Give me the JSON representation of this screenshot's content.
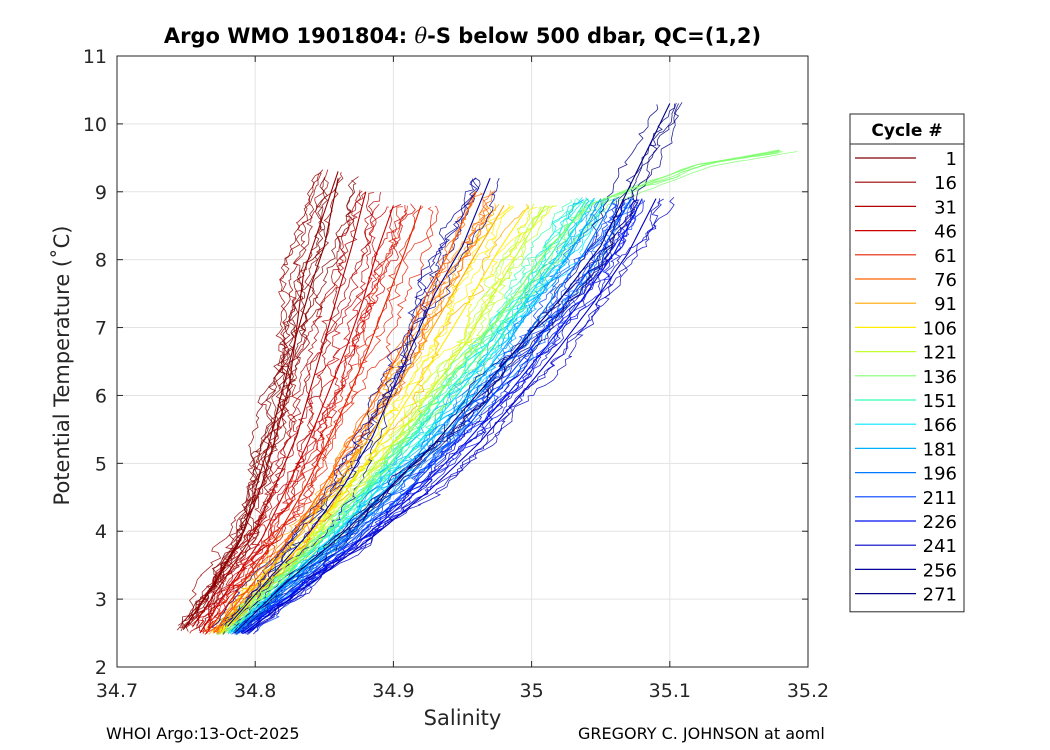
{
  "title": {
    "prefix": "Argo WMO 1901804: ",
    "symbol": "θ",
    "suffix": "-S below 500 dbar,  QC=(1,2)"
  },
  "footer": {
    "left": "WHOI Argo:13-Oct-2025",
    "right": "GREGORY C. JOHNSON at aoml"
  },
  "chart_data": {
    "type": "line",
    "title": "Argo WMO 1901804: θ-S below 500 dbar,  QC=(1,2)",
    "xlabel": "Salinity",
    "ylabel": "Potential Temperature (˚C)",
    "xlim": [
      34.7,
      35.2
    ],
    "ylim": [
      2,
      11
    ],
    "xticks": [
      34.7,
      34.8,
      34.9,
      35,
      35.1,
      35.2
    ],
    "xtick_labels": [
      "34.7",
      "34.8",
      "34.9",
      "35",
      "35.1",
      "35.2"
    ],
    "yticks": [
      2,
      3,
      4,
      5,
      6,
      7,
      8,
      9,
      10,
      11
    ],
    "ytick_labels": [
      "2",
      "3",
      "4",
      "5",
      "6",
      "7",
      "8",
      "9",
      "10",
      "11"
    ],
    "grid": true,
    "legend": {
      "title": "Cycle #",
      "placement": "outside-right",
      "entries": [
        {
          "label": "1",
          "color": "#800000"
        },
        {
          "label": "16",
          "color": "#980000"
        },
        {
          "label": "31",
          "color": "#b00000"
        },
        {
          "label": "46",
          "color": "#cc0000"
        },
        {
          "label": "61",
          "color": "#e62000"
        },
        {
          "label": "76",
          "color": "#ff6000"
        },
        {
          "label": "91",
          "color": "#ffa800"
        },
        {
          "label": "106",
          "color": "#ffee00"
        },
        {
          "label": "121",
          "color": "#c0ff30"
        },
        {
          "label": "136",
          "color": "#80ff70"
        },
        {
          "label": "151",
          "color": "#30ffb0"
        },
        {
          "label": "166",
          "color": "#00e8ff"
        },
        {
          "label": "181",
          "color": "#00b0ff"
        },
        {
          "label": "196",
          "color": "#0078ff"
        },
        {
          "label": "211",
          "color": "#0040ff"
        },
        {
          "label": "226",
          "color": "#0010f0"
        },
        {
          "label": "241",
          "color": "#0000c8"
        },
        {
          "label": "256",
          "color": "#00009c"
        },
        {
          "label": "271",
          "color": "#000080"
        }
      ]
    },
    "series": [
      {
        "name": "1",
        "s": [
          34.748,
          34.77,
          34.79,
          34.8,
          34.81,
          34.82,
          34.83,
          34.84,
          34.85,
          34.86
        ],
        "theta": [
          2.55,
          3.2,
          3.9,
          4.6,
          5.3,
          6.1,
          6.9,
          7.6,
          8.2,
          9.2
        ]
      },
      {
        "name": "16",
        "s": [
          34.75,
          34.772,
          34.792,
          34.805,
          34.815,
          34.825,
          34.83,
          34.835,
          34.845,
          34.86
        ],
        "theta": [
          2.6,
          3.3,
          4.0,
          4.7,
          5.4,
          6.2,
          7.0,
          7.8,
          8.4,
          9.3
        ]
      },
      {
        "name": "31",
        "s": [
          34.755,
          34.778,
          34.8,
          34.815,
          34.83,
          34.84,
          34.85,
          34.86,
          34.87,
          34.88
        ],
        "theta": [
          2.6,
          3.3,
          4.0,
          4.7,
          5.4,
          6.1,
          6.8,
          7.5,
          8.2,
          9.0
        ]
      },
      {
        "name": "46",
        "s": [
          34.76,
          34.782,
          34.805,
          34.822,
          34.838,
          34.852,
          34.866,
          34.878,
          34.888,
          34.9
        ],
        "theta": [
          2.5,
          3.2,
          3.9,
          4.6,
          5.3,
          6.0,
          6.7,
          7.4,
          8.1,
          8.8
        ]
      },
      {
        "name": "61",
        "s": [
          34.765,
          34.79,
          34.815,
          34.835,
          34.852,
          34.868,
          34.882,
          34.895,
          34.908,
          34.92
        ],
        "theta": [
          2.5,
          3.2,
          3.9,
          4.6,
          5.3,
          6.0,
          6.7,
          7.4,
          8.1,
          8.8
        ]
      },
      {
        "name": "76",
        "s": [
          34.77,
          34.797,
          34.825,
          34.848,
          34.868,
          34.888,
          34.906,
          34.922,
          34.94,
          34.96
        ],
        "theta": [
          2.5,
          3.2,
          3.9,
          4.6,
          5.3,
          6.0,
          6.7,
          7.4,
          8.1,
          9.0
        ]
      },
      {
        "name": "91",
        "s": [
          34.772,
          34.8,
          34.83,
          34.856,
          34.88,
          34.9,
          34.92,
          34.94,
          34.96,
          34.98
        ],
        "theta": [
          2.5,
          3.2,
          3.9,
          4.6,
          5.3,
          6.0,
          6.7,
          7.4,
          8.1,
          8.8
        ]
      },
      {
        "name": "106",
        "s": [
          34.775,
          34.805,
          34.838,
          34.866,
          34.89,
          34.912,
          34.934,
          34.955,
          34.975,
          34.998
        ],
        "theta": [
          2.5,
          3.2,
          3.9,
          4.6,
          5.3,
          6.0,
          6.7,
          7.4,
          8.1,
          8.8
        ]
      },
      {
        "name": "121",
        "s": [
          34.776,
          34.808,
          34.842,
          34.872,
          34.9,
          34.925,
          34.95,
          34.97,
          34.99,
          35.01
        ],
        "theta": [
          2.5,
          3.2,
          3.9,
          4.6,
          5.3,
          6.0,
          6.7,
          7.4,
          8.1,
          8.8
        ]
      },
      {
        "name": "136",
        "s": [
          34.778,
          34.812,
          34.846,
          34.878,
          34.906,
          34.932,
          34.96,
          34.985,
          35.01,
          35.04,
          35.12,
          35.18
        ],
        "theta": [
          2.5,
          3.2,
          3.9,
          4.6,
          5.3,
          6.0,
          6.7,
          7.4,
          8.1,
          8.8,
          9.4,
          9.6
        ]
      },
      {
        "name": "151",
        "s": [
          34.78,
          34.815,
          34.85,
          34.882,
          34.91,
          34.938,
          34.966,
          34.99,
          35.015,
          35.04
        ],
        "theta": [
          2.5,
          3.2,
          3.9,
          4.6,
          5.3,
          6.0,
          6.7,
          7.4,
          8.1,
          8.9
        ]
      },
      {
        "name": "166",
        "s": [
          34.782,
          34.818,
          34.855,
          34.888,
          34.918,
          34.946,
          34.972,
          34.996,
          35.02,
          35.045
        ],
        "theta": [
          2.5,
          3.2,
          3.9,
          4.6,
          5.3,
          6.0,
          6.7,
          7.4,
          8.1,
          8.9
        ]
      },
      {
        "name": "181",
        "s": [
          34.784,
          34.822,
          34.86,
          34.894,
          34.925,
          34.954,
          34.98,
          35.004,
          35.028,
          35.05
        ],
        "theta": [
          2.5,
          3.2,
          3.9,
          4.6,
          5.3,
          6.0,
          6.7,
          7.4,
          8.1,
          8.9
        ]
      },
      {
        "name": "196",
        "s": [
          34.786,
          34.826,
          34.866,
          34.902,
          34.934,
          34.962,
          34.99,
          35.014,
          35.038,
          35.06
        ],
        "theta": [
          2.5,
          3.2,
          3.9,
          4.6,
          5.3,
          6.0,
          6.7,
          7.4,
          8.1,
          8.9
        ]
      },
      {
        "name": "211",
        "s": [
          34.788,
          34.83,
          34.872,
          34.91,
          34.944,
          34.972,
          35.0,
          35.026,
          35.05,
          35.072
        ],
        "theta": [
          2.5,
          3.2,
          3.9,
          4.6,
          5.3,
          6.0,
          6.7,
          7.4,
          8.1,
          8.9
        ]
      },
      {
        "name": "226",
        "s": [
          34.79,
          34.834,
          34.878,
          34.918,
          34.952,
          34.982,
          35.01,
          35.036,
          35.06,
          35.08
        ],
        "theta": [
          2.5,
          3.2,
          3.9,
          4.6,
          5.3,
          6.0,
          6.7,
          7.4,
          8.1,
          8.9
        ]
      },
      {
        "name": "241",
        "s": [
          34.792,
          34.838,
          34.884,
          34.926,
          34.962,
          34.992,
          35.02,
          35.046,
          35.07,
          35.09
        ],
        "theta": [
          2.5,
          3.2,
          3.9,
          4.6,
          5.3,
          6.0,
          6.7,
          7.4,
          8.1,
          8.9
        ]
      },
      {
        "name": "256",
        "s": [
          34.78,
          34.81,
          34.84,
          34.865,
          34.885,
          34.9,
          34.915,
          34.93,
          34.95,
          34.97
        ],
        "theta": [
          2.6,
          3.3,
          4.0,
          4.7,
          5.4,
          6.1,
          6.8,
          7.5,
          8.2,
          9.2
        ]
      },
      {
        "name": "271",
        "s": [
          34.785,
          34.82,
          34.86,
          34.895,
          34.93,
          34.96,
          34.99,
          35.02,
          35.05,
          35.1
        ],
        "theta": [
          2.5,
          3.2,
          3.9,
          4.6,
          5.3,
          6.0,
          6.7,
          7.4,
          8.2,
          10.3
        ]
      }
    ]
  }
}
